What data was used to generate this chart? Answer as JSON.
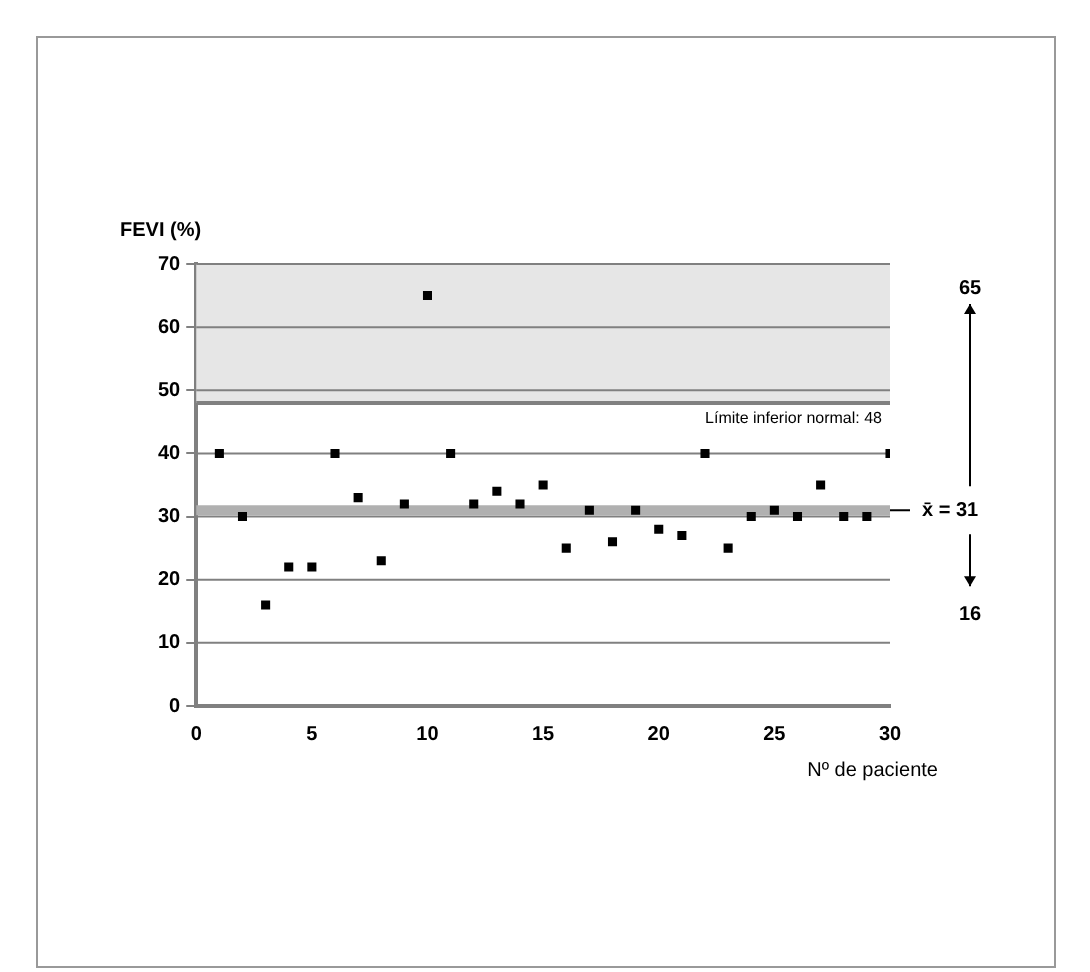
{
  "chart_data": {
    "type": "scatter",
    "ylabel": "FEVI (%)",
    "xlabel": "Nº de paciente",
    "x": [
      1,
      2,
      3,
      4,
      5,
      6,
      7,
      8,
      9,
      10,
      11,
      12,
      13,
      14,
      15,
      16,
      17,
      18,
      19,
      20,
      21,
      22,
      23,
      24,
      25,
      26,
      27,
      28,
      29,
      30
    ],
    "series": [
      {
        "color": "#000000",
        "values": [
          40,
          30,
          16,
          22,
          22,
          40,
          33,
          23,
          32,
          65,
          40,
          32,
          34,
          32,
          35,
          25,
          31,
          26,
          31,
          28,
          27,
          40,
          25,
          30,
          31,
          30,
          35,
          30,
          30,
          40
        ]
      }
    ],
    "xlim": [
      0,
      30
    ],
    "xticks": [
      0,
      5,
      10,
      15,
      20,
      25,
      30
    ],
    "ylim": [
      0,
      70
    ],
    "yticks": [
      0,
      10,
      20,
      30,
      40,
      50,
      60,
      70
    ],
    "grid": "y",
    "legend": false,
    "marker": "square",
    "bands": [
      {
        "axis": "y",
        "from": 48,
        "to": 70,
        "color": "#e6e6e6"
      }
    ],
    "ref_lines": [
      {
        "axis": "y",
        "value": 48,
        "label": "Límite inferior normal: 48",
        "color": "#808080"
      },
      {
        "axis": "y",
        "value": 31,
        "label": "x̄ = 31",
        "color": "#b0b0b0"
      }
    ],
    "annotations": [
      "65",
      "16"
    ]
  }
}
